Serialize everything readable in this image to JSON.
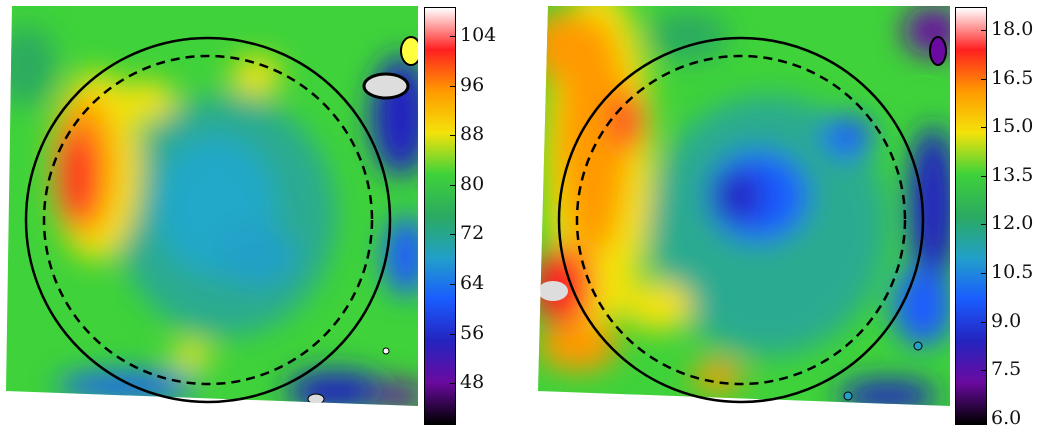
{
  "panels": [
    {
      "id": "left",
      "colorbar": {
        "ticks": [
          "104",
          "96",
          "88",
          "80",
          "72",
          "64",
          "56",
          "48"
        ],
        "colors": [
          "#ffffff",
          "#ff2020",
          "#ff9a00",
          "#f4e20a",
          "#3fd23a",
          "#2aaa60",
          "#22a0c8",
          "#1a5cff",
          "#2424c0",
          "#6a0aa0",
          "#000000"
        ]
      }
    },
    {
      "id": "right",
      "colorbar": {
        "ticks": [
          "18.0",
          "16.5",
          "15.0",
          "13.5",
          "12.0",
          "10.5",
          "9.0",
          "7.5",
          "6.0"
        ],
        "colors": [
          "#ffffff",
          "#ff2020",
          "#ff9a00",
          "#f4e20a",
          "#3fd23a",
          "#2aaa60",
          "#22a0c8",
          "#1a5cff",
          "#2424c0",
          "#6a0aa0",
          "#000000"
        ]
      }
    }
  ]
}
